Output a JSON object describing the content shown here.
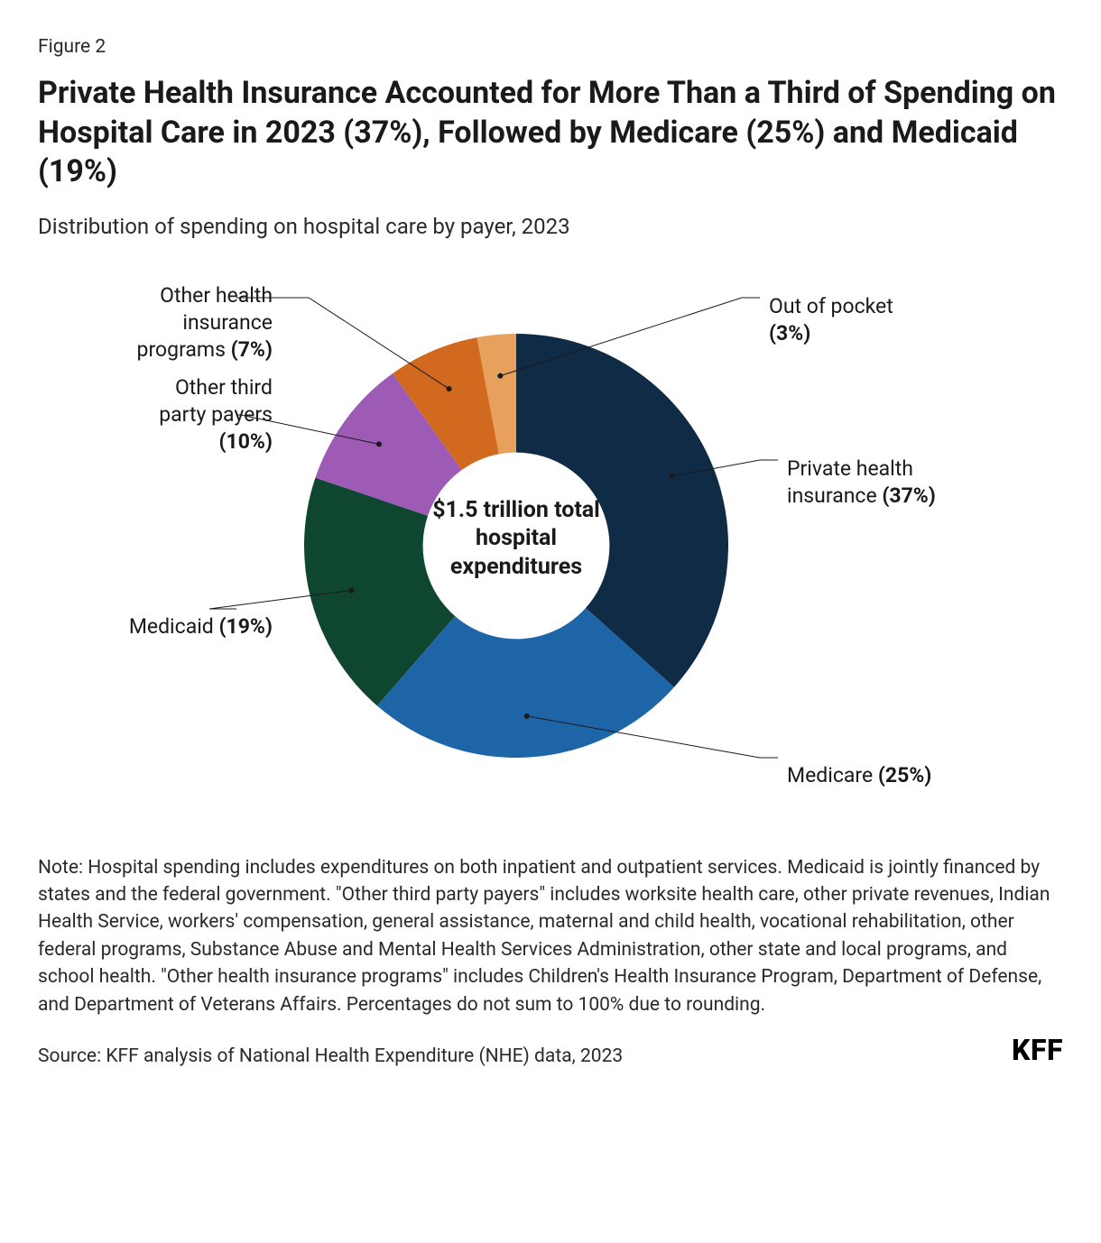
{
  "figure_label": "Figure 2",
  "title": "Private Health Insurance Accounted for More Than a Third of Spending on Hospital Care in 2023 (37%), Followed by Medicare (25%) and Medicaid (19%)",
  "subtitle": "Distribution of spending on hospital care by payer, 2023",
  "chart": {
    "type": "donut",
    "center_label": "$1.5 trillion total hospital expenditures",
    "inner_radius_ratio": 0.44,
    "background_color": "#ffffff",
    "leader_color": "#1a1a1a",
    "leader_width": 1,
    "dot_radius": 3,
    "slices": [
      {
        "label": "Out of pocket",
        "percent": 3,
        "color": "#e8a15c"
      },
      {
        "label": "Private health insurance",
        "percent": 37,
        "color": "#0f2b46"
      },
      {
        "label": "Medicare",
        "percent": 25,
        "color": "#1e65a7"
      },
      {
        "label": "Medicaid",
        "percent": 19,
        "color": "#0f4630"
      },
      {
        "label": "Other third party payers",
        "percent": 10,
        "color": "#9e5bb5"
      },
      {
        "label": "Other health insurance programs",
        "percent": 7,
        "color": "#d16a1e"
      }
    ],
    "label_fontsize": 23,
    "center_fontsize": 25
  },
  "note": "Note: Hospital spending includes expenditures on both inpatient and outpatient services. Medicaid is jointly financed by states and the federal government. \"Other third party payers\" includes worksite health care, other private revenues, Indian Health Service, workers' compensation, general assistance, maternal and child health, vocational rehabilitation, other federal programs, Substance Abuse and Mental Health Services Administration, other state and local programs, and school health. \"Other health insurance programs\" includes Children's Health Insurance Program, Department of Defense, and Department of Veterans Affairs. Percentages do not sum to 100% due to rounding.",
  "source": "Source: KFF analysis of National Health Expenditure (NHE) data, 2023",
  "logo": "KFF"
}
